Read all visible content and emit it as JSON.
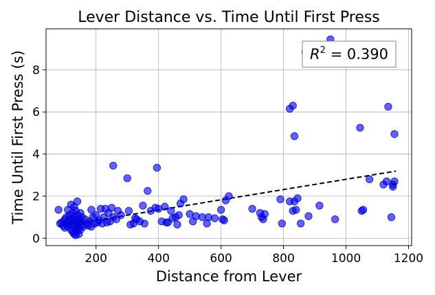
{
  "chart_data": {
    "type": "scatter",
    "title": "Lever Distance vs. Time Until First Press",
    "xlabel": "Distance from Lever",
    "ylabel": "Time Until First Press (s)",
    "xlim": [
      40,
      1210
    ],
    "ylim": [
      -0.35,
      9.95
    ],
    "xticks": [
      200,
      400,
      600,
      800,
      1000,
      1200
    ],
    "yticks": [
      0,
      2,
      4,
      6,
      8
    ],
    "grid": true,
    "annotation": {
      "label": "R",
      "superscript": "2",
      "equals": " = ",
      "value": "0.390",
      "placement": "top-right"
    },
    "series": [
      {
        "points": [
          [
            80,
            1.35
          ],
          [
            85,
            0.7
          ],
          [
            90,
            0.75
          ],
          [
            95,
            0.6
          ],
          [
            100,
            0.9
          ],
          [
            100,
            0.5
          ],
          [
            105,
            1.0
          ],
          [
            105,
            0.7
          ],
          [
            110,
            1.35
          ],
          [
            110,
            0.8
          ],
          [
            110,
            0.55
          ],
          [
            115,
            1.1
          ],
          [
            115,
            0.65
          ],
          [
            120,
            1.6
          ],
          [
            120,
            0.9
          ],
          [
            120,
            0.4
          ],
          [
            125,
            1.2
          ],
          [
            125,
            0.75
          ],
          [
            125,
            0.3
          ],
          [
            130,
            1.5
          ],
          [
            130,
            1.0
          ],
          [
            130,
            0.6
          ],
          [
            130,
            0.2
          ],
          [
            135,
            1.3
          ],
          [
            135,
            0.85
          ],
          [
            135,
            0.45
          ],
          [
            135,
            0.15
          ],
          [
            140,
            1.75
          ],
          [
            140,
            1.1
          ],
          [
            140,
            0.7
          ],
          [
            140,
            0.35
          ],
          [
            145,
            0.9
          ],
          [
            145,
            0.5
          ],
          [
            145,
            0.2
          ],
          [
            150,
            1.2
          ],
          [
            150,
            0.8
          ],
          [
            150,
            0.4
          ],
          [
            155,
            0.65
          ],
          [
            155,
            1.0
          ],
          [
            160,
            0.55
          ],
          [
            165,
            0.9
          ],
          [
            170,
            0.7
          ],
          [
            175,
            0.6
          ],
          [
            180,
            0.8
          ],
          [
            185,
            1.35
          ],
          [
            185,
            0.55
          ],
          [
            190,
            1.0
          ],
          [
            195,
            0.7
          ],
          [
            200,
            1.1
          ],
          [
            205,
            0.75
          ],
          [
            210,
            0.85
          ],
          [
            215,
            1.4
          ],
          [
            220,
            0.7
          ],
          [
            225,
            1.0
          ],
          [
            230,
            1.4
          ],
          [
            235,
            0.75
          ],
          [
            240,
            1.2
          ],
          [
            245,
            0.8
          ],
          [
            250,
            1.45
          ],
          [
            255,
            3.45
          ],
          [
            255,
            1.0
          ],
          [
            265,
            0.9
          ],
          [
            270,
            1.3
          ],
          [
            280,
            1.1
          ],
          [
            300,
            2.85
          ],
          [
            305,
            1.3
          ],
          [
            310,
            0.65
          ],
          [
            320,
            0.7
          ],
          [
            325,
            0.95
          ],
          [
            330,
            0.9
          ],
          [
            340,
            0.8
          ],
          [
            350,
            1.55
          ],
          [
            355,
            0.7
          ],
          [
            365,
            2.25
          ],
          [
            375,
            1.3
          ],
          [
            390,
            1.45
          ],
          [
            395,
            3.35
          ],
          [
            400,
            1.4
          ],
          [
            410,
            0.8
          ],
          [
            420,
            1.5
          ],
          [
            425,
            0.75
          ],
          [
            430,
            0.75
          ],
          [
            440,
            1.3
          ],
          [
            445,
            0.95
          ],
          [
            455,
            1.0
          ],
          [
            460,
            0.65
          ],
          [
            465,
            1.1
          ],
          [
            470,
            1.65
          ],
          [
            480,
            1.85
          ],
          [
            500,
            1.15
          ],
          [
            510,
            0.8
          ],
          [
            520,
            1.05
          ],
          [
            540,
            1.0
          ],
          [
            555,
            0.7
          ],
          [
            560,
            1.0
          ],
          [
            580,
            0.95
          ],
          [
            600,
            1.35
          ],
          [
            605,
            0.9
          ],
          [
            610,
            0.85
          ],
          [
            615,
            1.8
          ],
          [
            625,
            2.0
          ],
          [
            700,
            1.4
          ],
          [
            725,
            1.2
          ],
          [
            730,
            1.0
          ],
          [
            735,
            0.9
          ],
          [
            740,
            1.15
          ],
          [
            790,
            1.85
          ],
          [
            795,
            0.7
          ],
          [
            820,
            6.15
          ],
          [
            820,
            1.75
          ],
          [
            830,
            6.3
          ],
          [
            830,
            1.3
          ],
          [
            835,
            1.75
          ],
          [
            840,
            1.35
          ],
          [
            845,
            1.9
          ],
          [
            835,
            4.85
          ],
          [
            855,
            0.7
          ],
          [
            880,
            1.05
          ],
          [
            915,
            1.55
          ],
          [
            950,
            9.45
          ],
          [
            965,
            0.9
          ],
          [
            1045,
            5.25
          ],
          [
            1050,
            1.3
          ],
          [
            1055,
            1.35
          ],
          [
            1075,
            2.8
          ],
          [
            1120,
            2.55
          ],
          [
            1130,
            2.7
          ],
          [
            1135,
            6.25
          ],
          [
            1145,
            1.0
          ],
          [
            1150,
            2.55
          ],
          [
            1150,
            2.45
          ],
          [
            1155,
            2.7
          ],
          [
            1155,
            4.95
          ],
          [
            870,
            8.85
          ]
        ]
      }
    ],
    "fit_line": {
      "x": [
        80,
        1160
      ],
      "y": [
        0.56,
        3.19
      ]
    }
  }
}
